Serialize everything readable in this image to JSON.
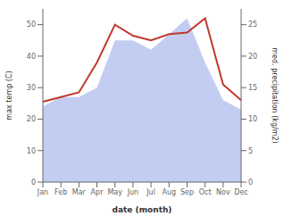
{
  "chart_data": {
    "type": "line",
    "xlabel": "date (month)",
    "ylabel": "max temp (C)",
    "y2label": "med. precipitation (kg/m2)",
    "categories": [
      "Jan",
      "Feb",
      "Mar",
      "Apr",
      "May",
      "Jun",
      "Jul",
      "Aug",
      "Sep",
      "Oct",
      "Nov",
      "Dec"
    ],
    "series": [
      {
        "type": "area",
        "axis": "y2",
        "color": "#b8c4ee",
        "values": [
          12.0,
          13.5,
          13.5,
          15.0,
          22.5,
          22.5,
          21.0,
          23.5,
          26.0,
          19.0,
          13.0,
          11.5
        ]
      },
      {
        "type": "line",
        "color": "#c0392b",
        "values": [
          25.5,
          27.0,
          28.5,
          38.0,
          50.0,
          46.5,
          45.0,
          47.0,
          47.5,
          52.0,
          31.0,
          26.0
        ]
      }
    ],
    "ylim": [
      0,
      55
    ],
    "yticks": [
      0,
      10,
      20,
      30,
      40,
      50
    ],
    "y2lim": [
      0,
      27.5
    ],
    "y2ticks": [
      0,
      5,
      10,
      15,
      20,
      25
    ],
    "grid": false
  }
}
